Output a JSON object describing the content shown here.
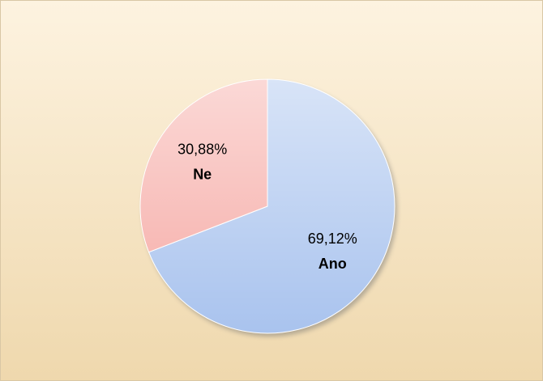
{
  "chart_data": {
    "type": "pie",
    "categories": [
      "Ano",
      "Ne"
    ],
    "values": [
      69.12,
      30.88
    ],
    "value_labels": [
      "69,12%",
      "30,88%"
    ],
    "colors": [
      "#a9c3ee",
      "#f6aaa5"
    ]
  }
}
